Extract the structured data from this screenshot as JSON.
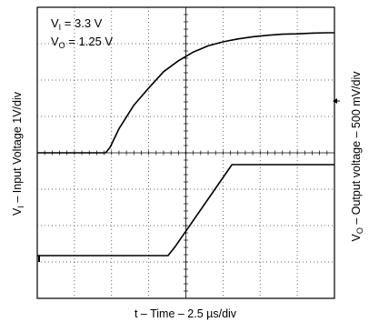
{
  "chart_data": {
    "type": "line",
    "title": "",
    "xlabel": "t – Time – 2.5  µs/div",
    "ylabel_left": {
      "prefix": "V",
      "sub": "I",
      "rest": " – Input Voltage 1V/div"
    },
    "ylabel_right": {
      "prefix": "V",
      "sub": "O",
      "rest": " – Output voltage – 500 mV/div"
    },
    "annotations": [
      {
        "prefix": "V",
        "sub": "I",
        "rest": " = 3.3 V"
      },
      {
        "prefix": "V",
        "sub": "O",
        "rest": " = 1.25 V"
      }
    ],
    "x_unit": "µs",
    "x_divisions": 8,
    "x_per_div": 2.5,
    "xlim": [
      0,
      20
    ],
    "grid": true,
    "series": [
      {
        "name": "VI",
        "volts_per_div": 1,
        "x": [
          0,
          4.6,
          4.9,
          5.5,
          6.5,
          7.5,
          8.5,
          9.5,
          10.5,
          11.5,
          12.5,
          13.5,
          14.5,
          15.5,
          16.5,
          17.5,
          18.5,
          19.5,
          20
        ],
        "y": [
          0,
          0,
          0.15,
          0.66,
          1.31,
          1.78,
          2.23,
          2.53,
          2.77,
          2.94,
          3.05,
          3.13,
          3.19,
          3.23,
          3.26,
          3.27,
          3.29,
          3.3,
          3.3
        ]
      },
      {
        "name": "VO",
        "volts_per_div": 0.5,
        "x": [
          0,
          8.8,
          9.3,
          13.1,
          20
        ],
        "y": [
          0,
          0,
          0.13,
          1.25,
          1.25
        ]
      }
    ]
  }
}
